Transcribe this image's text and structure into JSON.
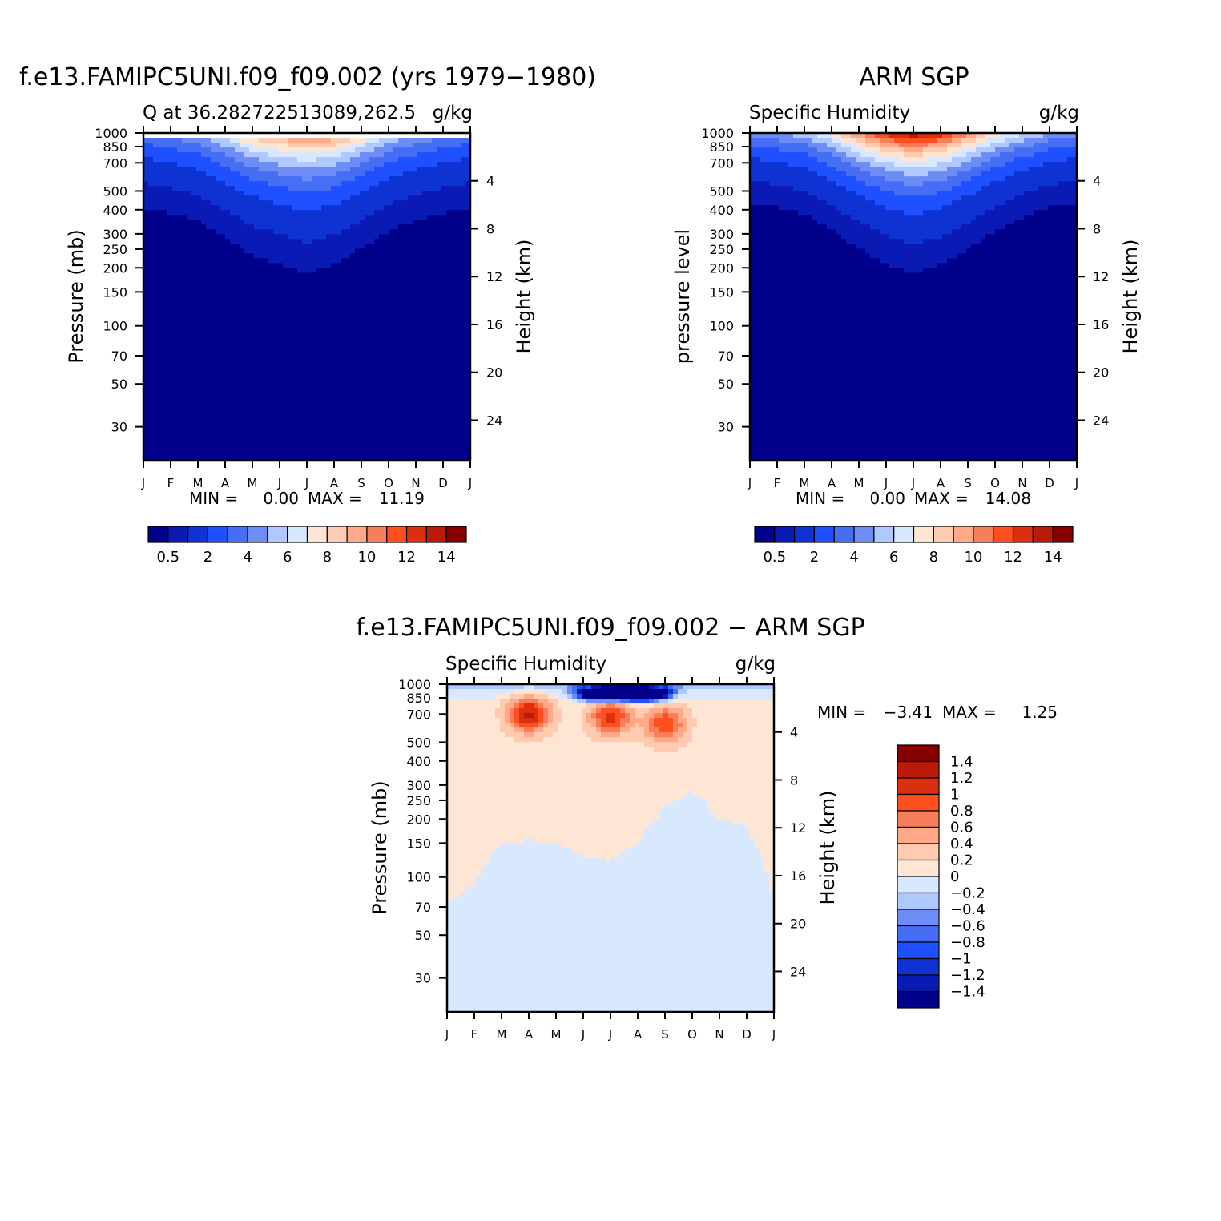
{
  "chart_data": [
    {
      "type": "heatmap",
      "title": "f.e13.FAMIPC5UNI.f09_f09.002 (yrs 1979−1980)",
      "left_string": "Q at 36.282722513089,262.5",
      "right_string": "g/kg",
      "ylabel": "Pressure (mb)",
      "right_ylabel": "Height (km)",
      "x_ticks": [
        "J",
        "F",
        "M",
        "A",
        "M",
        "J",
        "J",
        "A",
        "S",
        "O",
        "N",
        "D",
        "J"
      ],
      "y_ticks": [
        30,
        50,
        70,
        100,
        150,
        200,
        250,
        300,
        400,
        500,
        700,
        850,
        1000
      ],
      "right_ticks": [
        24,
        20,
        16,
        12,
        8,
        4
      ],
      "ylim": [
        1000,
        20
      ],
      "y_scale": "log",
      "min_label": "MIN =",
      "min_value": "0.00",
      "max_label": "MAX =",
      "max_value": "11.19",
      "colorbar": {
        "orientation": "horizontal",
        "levels": [
          0.5,
          1,
          2,
          3,
          4,
          5,
          6,
          7,
          8,
          9,
          10,
          11,
          12,
          13,
          14
        ],
        "labels": [
          "0.5",
          "2",
          "4",
          "6",
          "8",
          "10",
          "12",
          "14"
        ],
        "colors": [
          "#00008b",
          "#0a1ab4",
          "#0f32d2",
          "#1e50ff",
          "#466ef5",
          "#6e8cf5",
          "#afc8ff",
          "#d7e8ff",
          "#ffe6d4",
          "#ffcbb0",
          "#ffa989",
          "#f67e5a",
          "#ff4f1e",
          "#dc2f0f",
          "#b91a0a",
          "#870000"
        ]
      },
      "profile": {
        "months": [
          "J",
          "F",
          "M",
          "A",
          "M",
          "J",
          "J",
          "A",
          "S",
          "O",
          "N",
          "D",
          "J"
        ],
        "surface_q": [
          4.0,
          4.6,
          5.3,
          7.0,
          9.2,
          10.4,
          11.1,
          10.6,
          8.5,
          6.5,
          5.4,
          4.6,
          4.0
        ],
        "scale_height_km": [
          3.0,
          3.0,
          3.1,
          3.3,
          3.5,
          3.6,
          3.8,
          3.6,
          3.4,
          3.2,
          3.1,
          3.0,
          3.0
        ],
        "bottom_pressure": 950
      }
    },
    {
      "type": "heatmap",
      "title": "ARM SGP",
      "left_string": "Specific Humidity",
      "right_string": "g/kg",
      "ylabel": "pressure level",
      "right_ylabel": "Height (km)",
      "x_ticks": [
        "J",
        "F",
        "M",
        "A",
        "M",
        "J",
        "J",
        "A",
        "S",
        "O",
        "N",
        "D",
        "J"
      ],
      "y_ticks": [
        30,
        50,
        70,
        100,
        150,
        200,
        250,
        300,
        400,
        500,
        700,
        850,
        1000
      ],
      "right_ticks": [
        24,
        20,
        16,
        12,
        8,
        4
      ],
      "ylim": [
        1000,
        20
      ],
      "y_scale": "log",
      "min_label": "MIN =",
      "min_value": "0.00",
      "max_label": "MAX =",
      "max_value": "14.08",
      "colorbar": {
        "orientation": "horizontal",
        "levels": [
          0.5,
          1,
          2,
          3,
          4,
          5,
          6,
          7,
          8,
          9,
          10,
          11,
          12,
          13,
          14
        ],
        "labels": [
          "0.5",
          "2",
          "4",
          "6",
          "8",
          "10",
          "12",
          "14"
        ],
        "colors": [
          "#00008b",
          "#0a1ab4",
          "#0f32d2",
          "#1e50ff",
          "#466ef5",
          "#6e8cf5",
          "#afc8ff",
          "#d7e8ff",
          "#ffe6d4",
          "#ffcbb0",
          "#ffa989",
          "#f67e5a",
          "#ff4f1e",
          "#dc2f0f",
          "#b91a0a",
          "#870000"
        ]
      },
      "profile": {
        "months": [
          "J",
          "F",
          "M",
          "A",
          "M",
          "J",
          "J",
          "A",
          "S",
          "O",
          "N",
          "D",
          "J"
        ],
        "surface_q": [
          4.3,
          5.0,
          5.6,
          7.4,
          10.2,
          12.6,
          14.0,
          12.9,
          10.4,
          7.8,
          6.2,
          5.0,
          4.3
        ],
        "scale_height_km": [
          2.7,
          2.7,
          2.8,
          3.0,
          3.2,
          3.4,
          3.5,
          3.4,
          3.2,
          3.0,
          2.8,
          2.7,
          2.7
        ],
        "bottom_pressure": 1000
      }
    },
    {
      "type": "heatmap",
      "title": "f.e13.FAMIPC5UNI.f09_f09.002 − ARM SGP",
      "left_string": "Specific Humidity",
      "right_string": "g/kg",
      "ylabel": "Pressure (mb)",
      "right_ylabel": "Height (km)",
      "x_ticks": [
        "J",
        "F",
        "M",
        "A",
        "M",
        "J",
        "J",
        "A",
        "S",
        "O",
        "N",
        "D",
        "J"
      ],
      "y_ticks": [
        30,
        50,
        70,
        100,
        150,
        200,
        250,
        300,
        400,
        500,
        700,
        850,
        1000
      ],
      "right_ticks": [
        24,
        20,
        16,
        12,
        8,
        4
      ],
      "ylim": [
        1000,
        20
      ],
      "y_scale": "log",
      "min_label": "MIN =",
      "min_value": "−3.41",
      "max_label": "MAX =",
      "max_value": "1.25",
      "colorbar": {
        "orientation": "vertical",
        "levels": [
          -1.4,
          -1.2,
          -1,
          -0.8,
          -0.6,
          -0.4,
          -0.2,
          0,
          0.2,
          0.4,
          0.6,
          0.8,
          1,
          1.2,
          1.4
        ],
        "labels": [
          "1.4",
          "1.2",
          "1",
          "0.8",
          "0.6",
          "0.4",
          "0.2",
          "0",
          "−0.2",
          "−0.4",
          "−0.6",
          "−0.8",
          "−1",
          "−1.2",
          "−1.4"
        ],
        "colors": [
          "#00008b",
          "#0a1ab4",
          "#0f32d2",
          "#1e50ff",
          "#466ef5",
          "#6e8cf5",
          "#afc8ff",
          "#d7e8ff",
          "#ffe6d4",
          "#ffcbb0",
          "#ffa989",
          "#f67e5a",
          "#ff4f1e",
          "#dc2f0f",
          "#b91a0a",
          "#870000"
        ]
      },
      "features": {
        "upper_background": -0.1,
        "tropo_background": 0.1,
        "tropo_top_pressure": [
          75,
          90,
          150,
          155,
          150,
          130,
          120,
          150,
          230,
          280,
          200,
          185,
          75
        ],
        "peaks": [
          {
            "month_index": 3.0,
            "pressure": 700,
            "value": 1.25
          },
          {
            "month_index": 6.0,
            "pressure": 680,
            "value": 1.1
          },
          {
            "month_index": 8.0,
            "pressure": 620,
            "value": 1.0
          }
        ],
        "near_surface_minimum": {
          "month_index": 6.5,
          "pressure": 900,
          "value": -3.41
        }
      }
    }
  ]
}
